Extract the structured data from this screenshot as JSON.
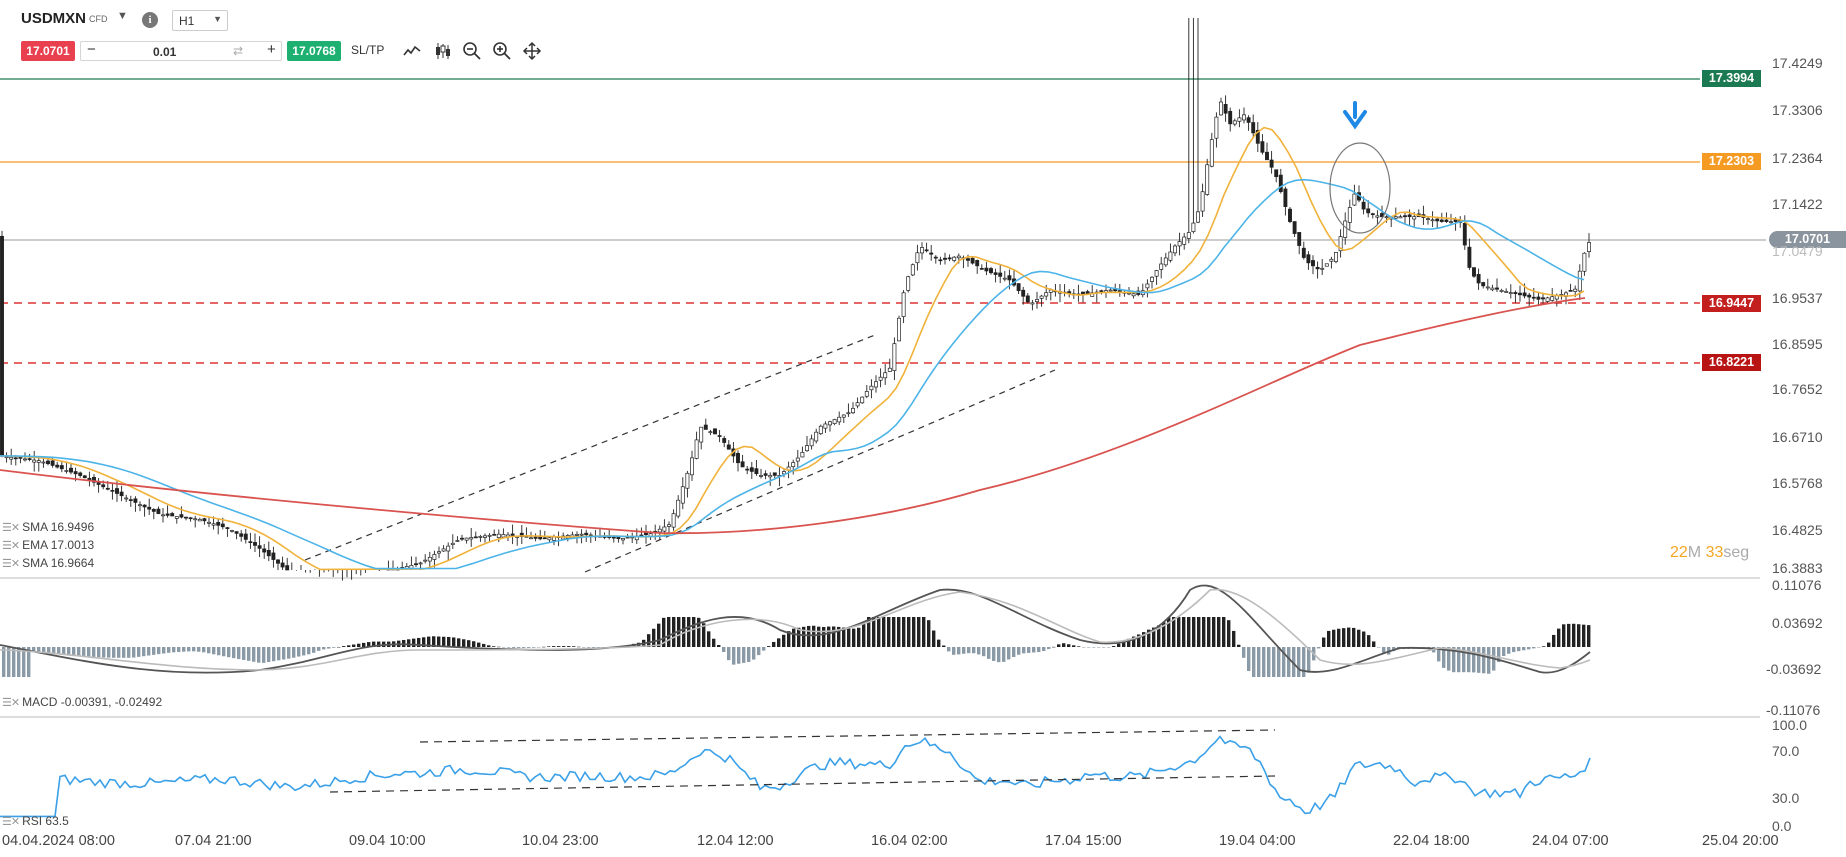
{
  "toolbar": {
    "symbol": "USDMXN",
    "instrument_type": "CFD",
    "timeframe": "H1",
    "sell_price": "17.0701",
    "volume": "0.01",
    "buy_price": "17.0768",
    "sltp_label": "SL/TP",
    "icons": [
      "line-chart-icon",
      "candlestick-icon",
      "zoom-out-icon",
      "zoom-in-icon",
      "move-icon"
    ]
  },
  "price_axis": {
    "ticks": [
      "17.4249",
      "17.3306",
      "17.2364",
      "17.1422",
      "17.0479",
      "16.9537",
      "16.8595",
      "16.7652",
      "16.6710",
      "16.5768",
      "16.4825",
      "16.3883"
    ]
  },
  "price_levels": [
    {
      "label": "17.3994",
      "color": "#1b7a52"
    },
    {
      "label": "17.2303",
      "color": "#f59a23"
    },
    {
      "label": "17.0701",
      "color": "#8a949e"
    },
    {
      "label": "16.9447",
      "color": "#c41f1f"
    },
    {
      "label": "16.8221",
      "color": "#b81414"
    }
  ],
  "indicators": {
    "sma1": "SMA 16.9496",
    "ema": "EMA 17.0013",
    "sma2": "SMA 16.9664",
    "macd": "MACD -0.00391, -0.02492",
    "rsi": "RSI 63.5"
  },
  "macd_axis": {
    "ticks": [
      "0.11076",
      "0.03692",
      "-0.03692",
      "-0.11076"
    ]
  },
  "rsi_axis": {
    "ticks": [
      "100.0",
      "70.0",
      "30.0",
      "0.0"
    ]
  },
  "time_axis": {
    "ticks": [
      "04.04.2024 08:00",
      "07.04 21:00",
      "09.04 10:00",
      "10.04 23:00",
      "12.04 12:00",
      "16.04 02:00",
      "17.04 15:00",
      "19.04 04:00",
      "22.04 18:00",
      "24.04 07:00",
      "25.04 20:00"
    ]
  },
  "countdown": {
    "minutes": "22",
    "min_unit": "M",
    "seconds": "33",
    "sec_unit": "seg"
  },
  "colors": {
    "sma_fast": "#f0b23a",
    "ema": "#4db4e8",
    "sma_slow": "#d9534f",
    "rsi": "#3aa0e8",
    "candle": "#222222"
  }
}
